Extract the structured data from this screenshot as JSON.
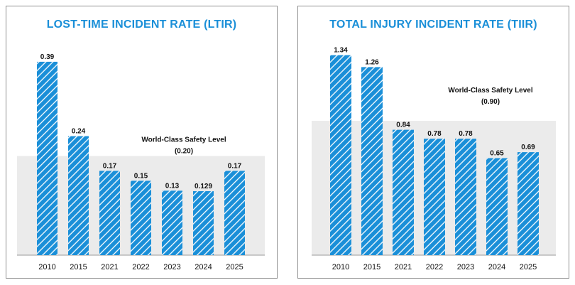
{
  "chart_data": [
    {
      "type": "bar",
      "title": "LOST-TIME INCIDENT RATE (LTIR)",
      "categories": [
        "2010",
        "2015",
        "2021",
        "2022",
        "2023",
        "2024",
        "2025"
      ],
      "values": [
        0.39,
        0.24,
        0.17,
        0.15,
        0.13,
        0.129,
        0.17
      ],
      "value_labels": [
        "0.39",
        "0.24",
        "0.17",
        "0.15",
        "0.13",
        "0.129",
        "0.17"
      ],
      "ylim": [
        0,
        0.43
      ],
      "reference": {
        "label": "World-Class Safety Level",
        "value_label": "(0.20)",
        "value": 0.2
      },
      "bar_color": "#1a8fd8",
      "band_color": "#ebebeb"
    },
    {
      "type": "bar",
      "title": "TOTAL INJURY INCIDENT RATE (TIIR)",
      "categories": [
        "2010",
        "2015",
        "2021",
        "2022",
        "2023",
        "2024",
        "2025"
      ],
      "values": [
        1.34,
        1.26,
        0.84,
        0.78,
        0.78,
        0.65,
        0.69
      ],
      "value_labels": [
        "1.34",
        "1.26",
        "0.84",
        "0.78",
        "0.78",
        "0.65",
        "0.69"
      ],
      "ylim": [
        0,
        1.5
      ],
      "reference": {
        "label": "World-Class Safety Level",
        "value_label": "(0.90)",
        "value": 0.9
      },
      "bar_color": "#1a8fd8",
      "band_color": "#ebebeb"
    }
  ]
}
